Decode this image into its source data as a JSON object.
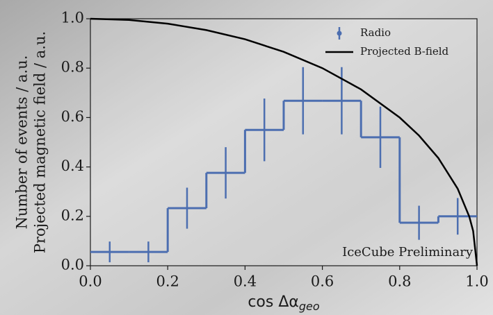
{
  "chart_data": {
    "type": "histogram",
    "xlabel": "cos Δα",
    "xlabel_subscript": "geo",
    "ylabel": [
      "Number of events / a.u.",
      "Projected magnetic field / a.u."
    ],
    "annotation": "IceCube Preliminary",
    "annotation_color": "#cc2222",
    "legend": "upper right",
    "bins": [
      0,
      0.1,
      0.2,
      0.3,
      0.4,
      0.5,
      0.6,
      0.7,
      0.8,
      0.9,
      1.0
    ],
    "series": [
      {
        "name": "Radio",
        "type": "histogram",
        "color": "#4c6eb0",
        "values": [
          0.056,
          0.056,
          0.233,
          0.376,
          0.55,
          0.668,
          0.668,
          0.52,
          0.174,
          0.2
        ],
        "errors": [
          0.042,
          0.042,
          0.083,
          0.104,
          0.127,
          0.136,
          0.136,
          0.124,
          0.069,
          0.074
        ]
      },
      {
        "name": "Projected B-field",
        "type": "line",
        "color": "#000000",
        "x": [
          0,
          0.1,
          0.2,
          0.3,
          0.4,
          0.5,
          0.6,
          0.7,
          0.8,
          0.85,
          0.9,
          0.95,
          0.98,
          0.99,
          1.0
        ],
        "values": [
          1,
          0.995,
          0.98,
          0.954,
          0.917,
          0.866,
          0.8,
          0.714,
          0.6,
          0.527,
          0.436,
          0.312,
          0.199,
          0.141,
          0
        ]
      }
    ],
    "xlim": [
      0,
      1
    ],
    "ylim": [
      0,
      1
    ],
    "xticks": [
      {
        "value": 0,
        "label": "0.0"
      },
      0.2,
      0.4,
      0.6,
      0.8,
      {
        "value": 1,
        "label": "1.0"
      }
    ],
    "yticks": [
      {
        "value": 0,
        "label": "0.0"
      },
      0.2,
      0.4,
      0.6,
      0.8,
      {
        "value": 1,
        "label": "1.0"
      }
    ]
  }
}
